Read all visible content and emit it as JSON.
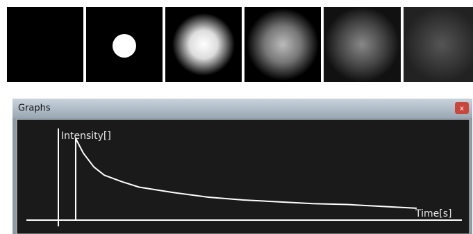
{
  "window": {
    "title": "Graphs"
  },
  "chart_data": {
    "type": "line",
    "x_label": "Time[s]",
    "y_label": "Intensity[]",
    "x": [
      4.3,
      4.3,
      6.2,
      8.8,
      11.4,
      15.7,
      20,
      28.6,
      37.2,
      45.8,
      54.4,
      63,
      71.6,
      80.2,
      88.8
    ],
    "series": [
      {
        "color": "#ffffff",
        "values": [
          0,
          0.89,
          0.73,
          0.58,
          0.49,
          0.42,
          0.36,
          0.3,
          0.25,
          0.22,
          0.2,
          0.18,
          0.17,
          0.15,
          0.13
        ]
      }
    ],
    "xlim": [
      0,
      100
    ],
    "ylim": [
      0,
      1
    ]
  }
}
